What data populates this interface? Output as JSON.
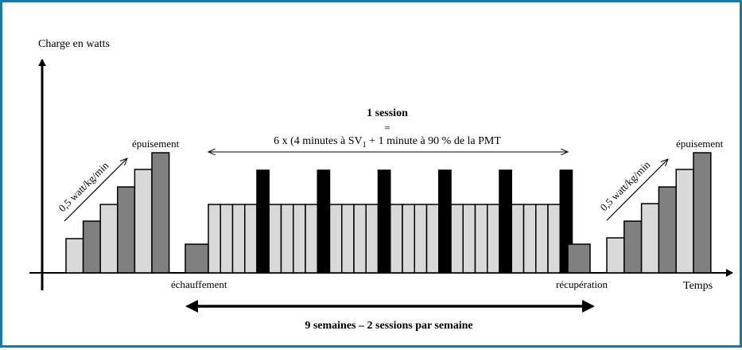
{
  "accent_color": "#1a7aa3",
  "colors": {
    "light_bar": "#d9d9d9",
    "dark_bar": "#808080",
    "sprint_bar": "#000000"
  },
  "y_axis_label": "Charge en watts",
  "x_axis_label": "Temps",
  "session": {
    "title": "1 session",
    "equals": "=",
    "formula_pre": "6 x (4 minutes à SV",
    "formula_sub": "1",
    "formula_post": " + 1 minute à 90 % de la PMT"
  },
  "left_test": {
    "slope_label": "0,5 watt/kg/min",
    "end_label": "épuisement"
  },
  "right_test": {
    "slope_label": "0,5 watt/kg/min",
    "end_label": "épuisement"
  },
  "warmup_label": "échauffement",
  "recovery_label": "récupération",
  "program_label": "9 semaines – 2 sessions par semaine"
}
